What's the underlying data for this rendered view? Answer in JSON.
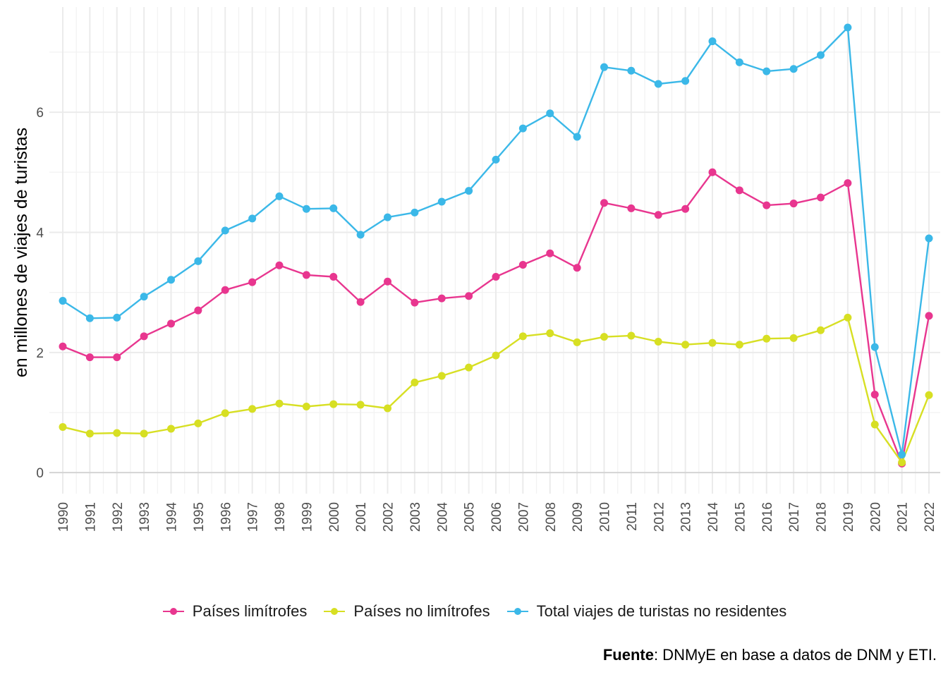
{
  "chart_data": {
    "type": "line",
    "ylabel": "en millones de viajes de turistas",
    "xlabel": "",
    "ylim": [
      -0.35,
      7.75
    ],
    "y_ticks": [
      0,
      2,
      4,
      6
    ],
    "x": [
      "1990",
      "1991",
      "1992",
      "1993",
      "1994",
      "1995",
      "1996",
      "1997",
      "1998",
      "1999",
      "2000",
      "2001",
      "2002",
      "2003",
      "2004",
      "2005",
      "2006",
      "2007",
      "2008",
      "2009",
      "2010",
      "2011",
      "2012",
      "2013",
      "2014",
      "2015",
      "2016",
      "2017",
      "2018",
      "2019",
      "2020",
      "2021",
      "2022"
    ],
    "grid": true,
    "legend_position": "bottom",
    "series": [
      {
        "name": "Países limítrofes",
        "color": "#e8368f",
        "values": [
          2.1,
          1.92,
          1.92,
          2.27,
          2.48,
          2.7,
          3.04,
          3.17,
          3.45,
          3.29,
          3.26,
          2.84,
          3.18,
          2.83,
          2.9,
          2.94,
          3.26,
          3.46,
          3.65,
          3.41,
          4.49,
          4.4,
          4.29,
          4.39,
          5.0,
          4.7,
          4.45,
          4.48,
          4.58,
          4.82,
          1.3,
          0.15,
          2.61
        ]
      },
      {
        "name": "Países no limítrofes",
        "color": "#d7df23",
        "values": [
          0.76,
          0.65,
          0.66,
          0.65,
          0.73,
          0.82,
          0.99,
          1.06,
          1.15,
          1.1,
          1.14,
          1.13,
          1.07,
          1.5,
          1.61,
          1.75,
          1.95,
          2.27,
          2.32,
          2.17,
          2.26,
          2.28,
          2.18,
          2.13,
          2.16,
          2.13,
          2.23,
          2.24,
          2.37,
          2.58,
          0.8,
          0.17,
          1.29
        ]
      },
      {
        "name": "Total viajes de turistas no residentes",
        "color": "#3bb8e8",
        "values": [
          2.86,
          2.57,
          2.58,
          2.93,
          3.21,
          3.52,
          4.03,
          4.23,
          4.6,
          4.39,
          4.4,
          3.96,
          4.25,
          4.33,
          4.51,
          4.69,
          5.21,
          5.73,
          5.98,
          5.59,
          6.75,
          6.69,
          6.47,
          6.52,
          7.18,
          6.83,
          6.68,
          6.72,
          6.95,
          7.41,
          2.09,
          0.3,
          3.9
        ]
      }
    ],
    "caption": {
      "bold": "Fuente",
      "text": ": DNMyE en base a datos de DNM y ETI."
    }
  }
}
